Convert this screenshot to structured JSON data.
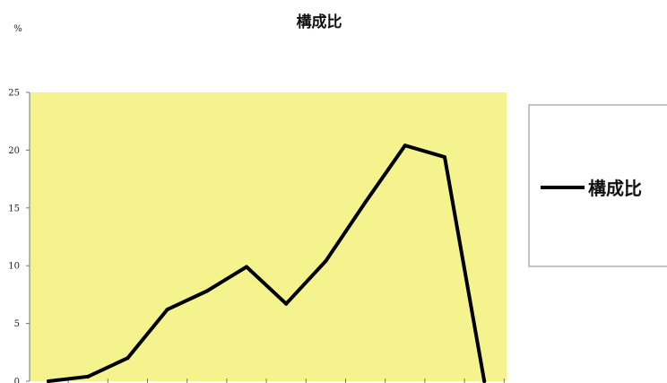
{
  "chart_data": {
    "type": "line",
    "title": "構成比",
    "ylabel": "%",
    "xlabel": "",
    "ylim": [
      0,
      25
    ],
    "yticks": [
      0,
      5,
      10,
      15,
      20,
      25
    ],
    "grid": false,
    "legend_position": "right",
    "plot_background": "#f5f38e",
    "series": [
      {
        "name": "構成比",
        "color": "#000000",
        "values": [
          0,
          0.4,
          2.0,
          6.2,
          7.8,
          9.9,
          6.7,
          10.4,
          15.5,
          20.4,
          19.4,
          0
        ]
      }
    ]
  }
}
